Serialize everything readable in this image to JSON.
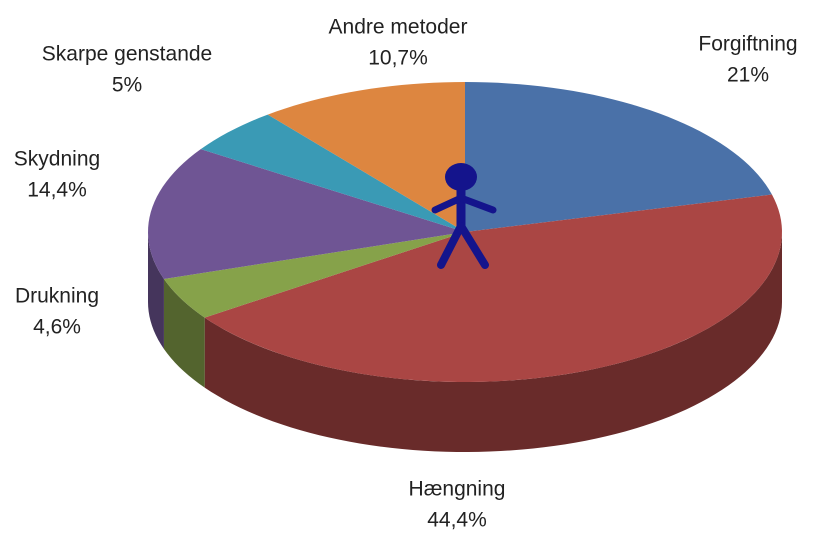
{
  "chart_data": {
    "type": "pie",
    "categories": [
      "Forgiftning",
      "Hængning",
      "Drukning",
      "Skydning",
      "Skarpe genstande",
      "Andre metoder"
    ],
    "values": [
      21,
      44.4,
      4.6,
      14.4,
      5,
      10.7
    ],
    "value_labels": [
      "21%",
      "44,4%",
      "4,6%",
      "14,4%",
      "5%",
      "10,7%"
    ],
    "colors": [
      "#4a71a8",
      "#aa4644",
      "#86a24a",
      "#6f5594",
      "#3a9ab5",
      "#dd8640"
    ]
  }
}
